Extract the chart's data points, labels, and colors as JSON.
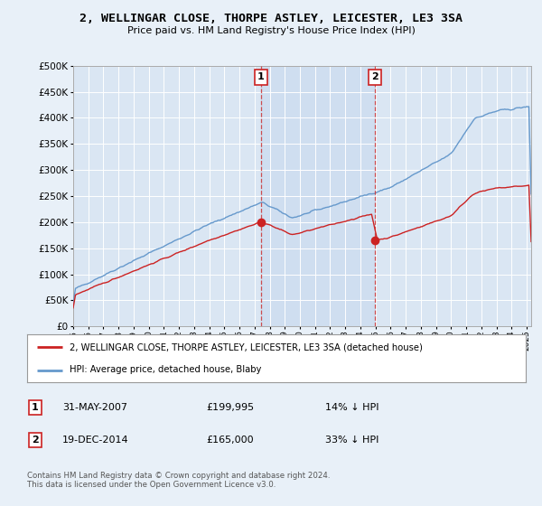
{
  "title": "2, WELLINGAR CLOSE, THORPE ASTLEY, LEICESTER, LE3 3SA",
  "subtitle": "Price paid vs. HM Land Registry's House Price Index (HPI)",
  "hpi_label": "HPI: Average price, detached house, Blaby",
  "property_label": "2, WELLINGAR CLOSE, THORPE ASTLEY, LEICESTER, LE3 3SA (detached house)",
  "transaction1_date": "31-MAY-2007",
  "transaction1_price": "£199,995",
  "transaction1_hpi": "14% ↓ HPI",
  "transaction2_date": "19-DEC-2014",
  "transaction2_price": "£165,000",
  "transaction2_hpi": "33% ↓ HPI",
  "footer": "Contains HM Land Registry data © Crown copyright and database right 2024.\nThis data is licensed under the Open Government Licence v3.0.",
  "ylim": [
    0,
    500000
  ],
  "yticks": [
    0,
    50000,
    100000,
    150000,
    200000,
    250000,
    300000,
    350000,
    400000,
    450000,
    500000
  ],
  "bg_color": "#e8f0f8",
  "hpi_color": "#6699cc",
  "property_color": "#cc2222",
  "vline_color": "#cc3333",
  "transaction1_year": 2007.42,
  "transaction2_year": 2014.96,
  "transaction1_price_val": 199995,
  "transaction2_price_val": 165000,
  "xmin": 1995,
  "xmax": 2025.3,
  "shade_color": "#dae6f3"
}
